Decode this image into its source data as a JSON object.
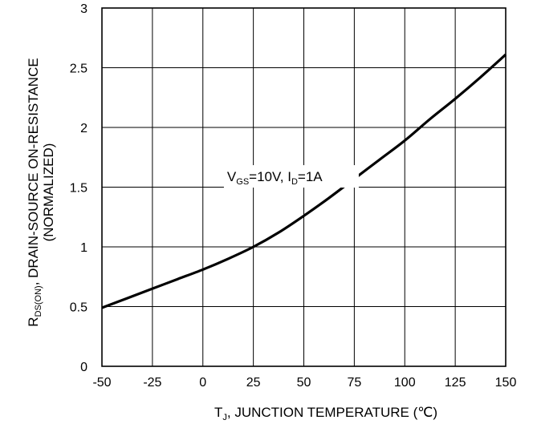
{
  "chart_data": {
    "type": "line",
    "title": "",
    "xlabel": {
      "main": "T",
      "sub": "J",
      "rest": ", JUNCTION TEMPERATURE (℃)"
    },
    "ylabel": {
      "main": "R",
      "sub": "DS(ON)",
      "rest": ", DRAIN-SOURCE ON-RESISTANCE",
      "line2": "(NORMALIZED)"
    },
    "xlim": [
      -50,
      150
    ],
    "ylim": [
      0,
      3
    ],
    "grid": true,
    "x_ticks": [
      -50,
      -25,
      0,
      25,
      50,
      75,
      100,
      125,
      150
    ],
    "y_ticks": [
      0,
      0.5,
      1,
      1.5,
      2,
      2.5,
      3
    ],
    "x_tick_labels": [
      "-50",
      "-25",
      "0",
      "25",
      "50",
      "75",
      "100",
      "125",
      "150"
    ],
    "y_tick_labels": [
      "0",
      "0.5",
      "1",
      "1.5",
      "2",
      "2.5",
      "3"
    ],
    "annotation": {
      "v": "V",
      "gs": "GS",
      "eq1": "=10V, I",
      "d": "D",
      "eq2": "=1A",
      "x": 12,
      "y": 1.55
    },
    "series": [
      {
        "x": [
          -50,
          -37.5,
          -25,
          -12.5,
          0,
          12.5,
          25,
          37.5,
          50,
          62.5,
          75,
          87.5,
          100,
          112.5,
          125,
          137.5,
          150
        ],
        "values": [
          0.49,
          0.57,
          0.65,
          0.73,
          0.81,
          0.9,
          1.0,
          1.12,
          1.26,
          1.41,
          1.57,
          1.73,
          1.89,
          2.07,
          2.24,
          2.42,
          2.61
        ]
      }
    ]
  }
}
